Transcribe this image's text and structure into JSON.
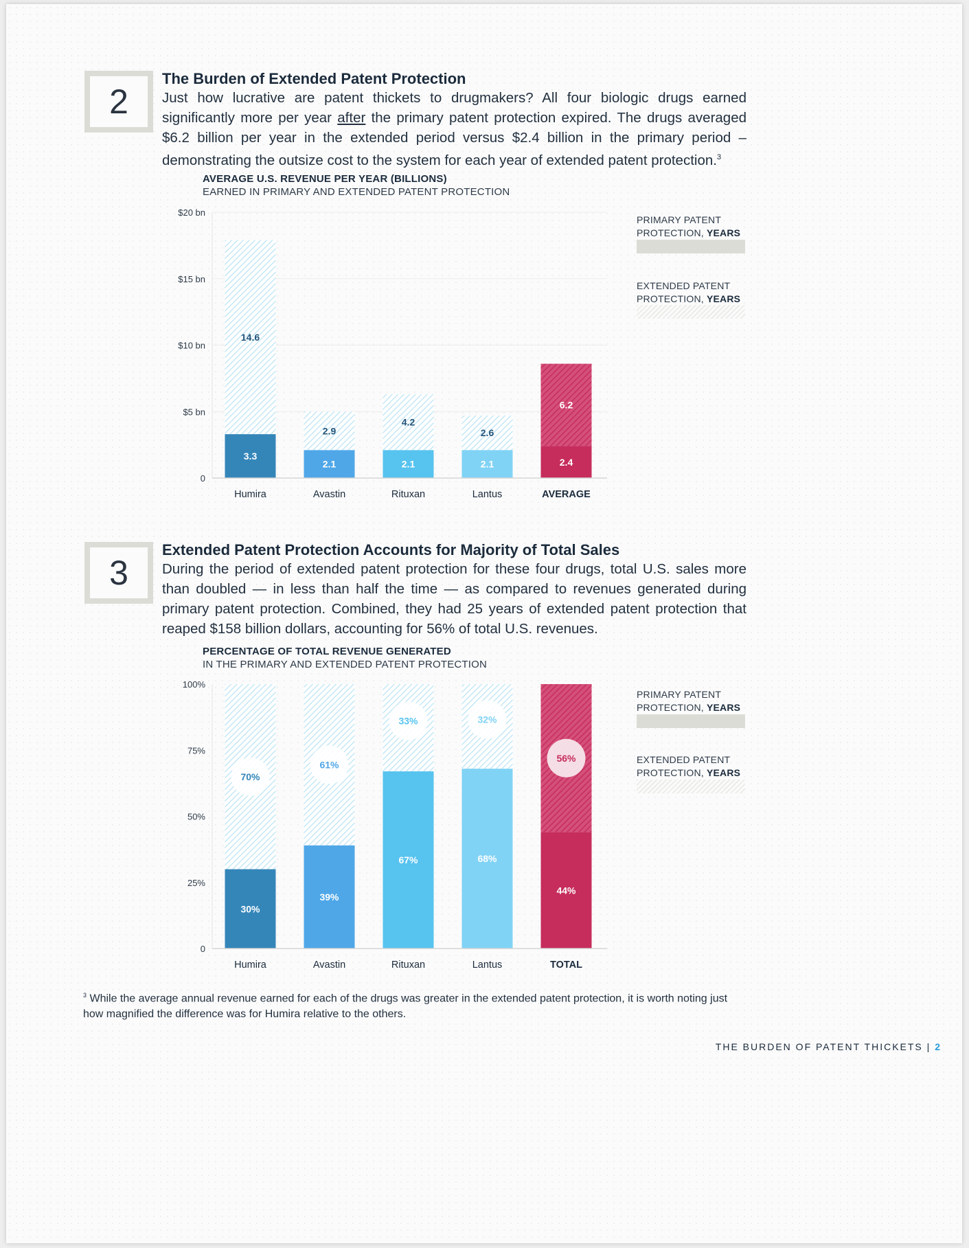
{
  "section2": {
    "number": "2",
    "title": "The Burden of Extended Patent Protection",
    "body_parts": [
      "Just how lucrative are patent thickets to drugmakers? All four biologic drugs earned significantly more per year ",
      "after",
      " the primary patent protection expired. The drugs averaged $6.2 billion per year in the extended period versus $2.4 billion in the primary period – demonstrating the outsize cost to the system for each year of extended patent protection.",
      "3"
    ]
  },
  "section3": {
    "number": "3",
    "title": "Extended Patent Protection Accounts for Majority of Total Sales",
    "body": "During the period of extended patent protection for these four drugs, total U.S. sales more than doubled — in less than half the time — as compared to revenues generated during primary patent protection. Combined, they had 25 years of extended patent protection that reaped $158 billion dollars, accounting for 56% of total U.S. revenues."
  },
  "legend": {
    "primary_line1": "PRIMARY PATENT",
    "primary_line2a": "PROTECTION, ",
    "primary_line2b": "YEARS",
    "extended_line1": "EXTENDED PATENT",
    "extended_line2a": "PROTECTION, ",
    "extended_line2b": "YEARS"
  },
  "chart_data": [
    {
      "type": "bar",
      "stacked": true,
      "title": "AVERAGE U.S. REVENUE PER YEAR (BILLIONS)",
      "subtitle": "EARNED IN PRIMARY AND EXTENDED PATENT PROTECTION",
      "categories": [
        "Humira",
        "Avastin",
        "Rituxan",
        "Lantus",
        "AVERAGE"
      ],
      "series": [
        {
          "name": "PRIMARY PATENT PROTECTION, YEARS",
          "values": [
            3.3,
            2.1,
            2.1,
            2.1,
            2.4
          ],
          "labels": [
            "3.3",
            "2.1",
            "2.1",
            "2.1",
            "2.4"
          ]
        },
        {
          "name": "EXTENDED PATENT PROTECTION, YEARS",
          "values": [
            14.6,
            2.9,
            4.2,
            2.6,
            6.2
          ],
          "labels": [
            "14.6",
            "2.9",
            "4.2",
            "2.6",
            "6.2"
          ]
        }
      ],
      "ylim": [
        0,
        20
      ],
      "yticks": [
        0,
        5,
        10,
        15,
        20
      ],
      "ytick_labels": [
        "0",
        "$5 bn",
        "$10 bn",
        "$15 bn",
        "$20 bn"
      ],
      "grid": true,
      "colors": [
        "#3486b9",
        "#4fa7e8",
        "#57c3ef",
        "#80d3f5",
        "#c62d5c"
      ],
      "legend_position": "right"
    },
    {
      "type": "bar",
      "stacked": true,
      "title": "PERCENTAGE OF TOTAL REVENUE GENERATED",
      "subtitle": "IN THE PRIMARY AND EXTENDED PATENT PROTECTION",
      "categories": [
        "Humira",
        "Avastin",
        "Rituxan",
        "Lantus",
        "TOTAL"
      ],
      "series": [
        {
          "name": "PRIMARY PATENT PROTECTION, YEARS",
          "values": [
            30,
            39,
            67,
            68,
            44
          ],
          "labels": [
            "30%",
            "39%",
            "67%",
            "68%",
            "44%"
          ]
        },
        {
          "name": "EXTENDED PATENT PROTECTION, YEARS",
          "values": [
            70,
            61,
            33,
            32,
            56
          ],
          "labels": [
            "70%",
            "61%",
            "33%",
            "32%",
            "56%"
          ]
        }
      ],
      "ylim": [
        0,
        100
      ],
      "yticks": [
        0,
        25,
        50,
        75,
        100
      ],
      "ytick_labels": [
        "0",
        "25%",
        "50%",
        "75%",
        "100%"
      ],
      "grid": false,
      "colors": [
        "#3486b9",
        "#4fa7e8",
        "#57c3ef",
        "#80d3f5",
        "#c62d5c"
      ],
      "legend_position": "right"
    }
  ],
  "footnote": {
    "marker": "3",
    "text": "While the average annual revenue earned for each of the drugs was greater in the extended patent protection, it is worth noting just how magnified the difference was for Humira relative to the others."
  },
  "footer": {
    "title": "THE BURDEN OF PATENT THICKETS",
    "separator": "|",
    "page_number": "2"
  }
}
